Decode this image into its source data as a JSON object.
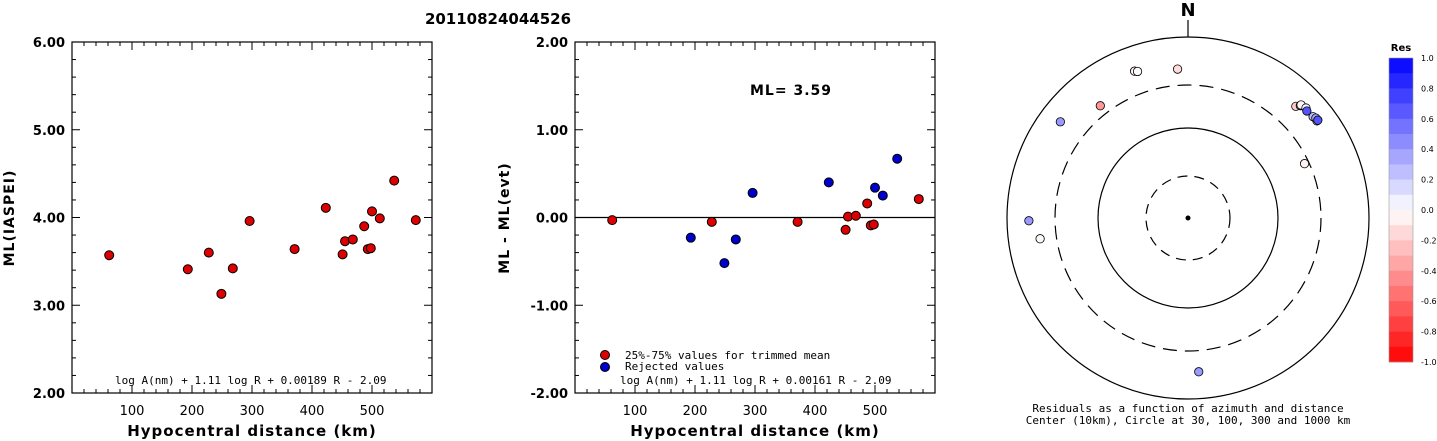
{
  "event_id": "20110824044526",
  "chart_data": [
    {
      "type": "scatter",
      "id": "left",
      "xlabel": "Hypocentral distance (km)",
      "ylabel": "ML(IASPEI)",
      "xlim": [
        0,
        600
      ],
      "ylim": [
        2.0,
        6.0
      ],
      "xticks": [
        "100",
        "200",
        "300",
        "400",
        "500"
      ],
      "yticks": [
        "2.00",
        "3.00",
        "4.00",
        "5.00",
        "6.00"
      ],
      "formula": "log A(nm) + 1.11 log R + 0.00189 R - 2.09",
      "series": [
        {
          "color": "#dd0000",
          "points": [
            [
              62,
              3.57
            ],
            [
              193,
              3.41
            ],
            [
              228,
              3.6
            ],
            [
              249,
              3.13
            ],
            [
              268,
              3.42
            ],
            [
              296,
              3.96
            ],
            [
              371,
              3.64
            ],
            [
              423,
              4.11
            ],
            [
              451,
              3.58
            ],
            [
              455,
              3.73
            ],
            [
              468,
              3.75
            ],
            [
              487,
              3.9
            ],
            [
              493,
              3.64
            ],
            [
              498,
              3.65
            ],
            [
              500,
              4.07
            ],
            [
              513,
              3.99
            ],
            [
              537,
              4.42
            ],
            [
              573,
              3.97
            ]
          ]
        }
      ]
    },
    {
      "type": "scatter",
      "id": "middle",
      "xlabel": "Hypocentral distance (km)",
      "ylabel": "ML - ML(evt)",
      "xlim": [
        0,
        600
      ],
      "ylim": [
        -2.0,
        2.0
      ],
      "xticks": [
        "100",
        "200",
        "300",
        "400",
        "500"
      ],
      "yticks": [
        "-2.00",
        "-1.00",
        "0.00",
        "1.00",
        "2.00"
      ],
      "annotation": "ML= 3.59",
      "formula": "log A(nm) + 1.11 log R + 0.00161 R - 2.09",
      "legend": [
        {
          "label": "25%-75% values for trimmed mean",
          "color": "#dd0000"
        },
        {
          "label": "Rejected values",
          "color": "#0000cc"
        }
      ],
      "series": [
        {
          "color": "#dd0000",
          "points": [
            [
              62,
              -0.03
            ],
            [
              228,
              -0.05
            ],
            [
              371,
              -0.05
            ],
            [
              451,
              -0.14
            ],
            [
              455,
              0.01
            ],
            [
              468,
              0.02
            ],
            [
              487,
              0.16
            ],
            [
              493,
              -0.09
            ],
            [
              498,
              -0.08
            ],
            [
              573,
              0.21
            ]
          ]
        },
        {
          "color": "#0000cc",
          "points": [
            [
              193,
              -0.23
            ],
            [
              249,
              -0.52
            ],
            [
              268,
              -0.25
            ],
            [
              296,
              0.28
            ],
            [
              423,
              0.4
            ],
            [
              500,
              0.34
            ],
            [
              513,
              0.25
            ],
            [
              537,
              0.67
            ]
          ]
        }
      ]
    },
    {
      "type": "polar-scatter",
      "id": "azimuth",
      "north_label": "N",
      "caption_line1": "Residuals as a function of azimuth and distance",
      "caption_line2": "Center (10km), Circle at 30, 100, 300 and 1000 km",
      "ring_distances_km": [
        30,
        100,
        300,
        1000
      ],
      "points": [
        {
          "azimuth": 356,
          "distance": 451,
          "res": -0.14
        },
        {
          "azimuth": 340,
          "distance": 538,
          "res": -0.05
        },
        {
          "azimuth": 341,
          "distance": 521,
          "res": 0.02
        },
        {
          "azimuth": 322,
          "distance": 380,
          "res": -0.4
        },
        {
          "azimuth": 307,
          "distance": 588,
          "res": 0.4
        },
        {
          "azimuth": 269,
          "distance": 578,
          "res": 0.4
        },
        {
          "azimuth": 262,
          "distance": 452,
          "res": -0.03
        },
        {
          "azimuth": 176,
          "distance": 510,
          "res": 0.4
        },
        {
          "azimuth": 65,
          "distance": 268,
          "res": -0.05
        },
        {
          "azimuth": 44,
          "distance": 524,
          "res": -0.2
        },
        {
          "azimuth": 45,
          "distance": 574,
          "res": -0.3
        },
        {
          "azimuth": 45,
          "distance": 589,
          "res": -0.03
        },
        {
          "azimuth": 47,
          "distance": 610,
          "res": 0.02
        },
        {
          "azimuth": 48,
          "distance": 590,
          "res": 0.67
        },
        {
          "azimuth": 51,
          "distance": 605,
          "res": 0.25
        },
        {
          "azimuth": 53,
          "distance": 612,
          "res": 0.05
        },
        {
          "azimuth": 52,
          "distance": 625,
          "res": 0.34
        },
        {
          "azimuth": 53,
          "distance": 630,
          "res": 0.67
        }
      ]
    }
  ],
  "colorbar": {
    "title": "Res",
    "labels": [
      "1.0",
      "0.8",
      "0.6",
      "0.4",
      "0.2",
      "0.0",
      "-0.2",
      "-0.4",
      "-0.6",
      "-0.8",
      "-1.0"
    ],
    "max_color": "#0000ff",
    "zero_color": "#ffffff",
    "min_color": "#ff0000"
  }
}
